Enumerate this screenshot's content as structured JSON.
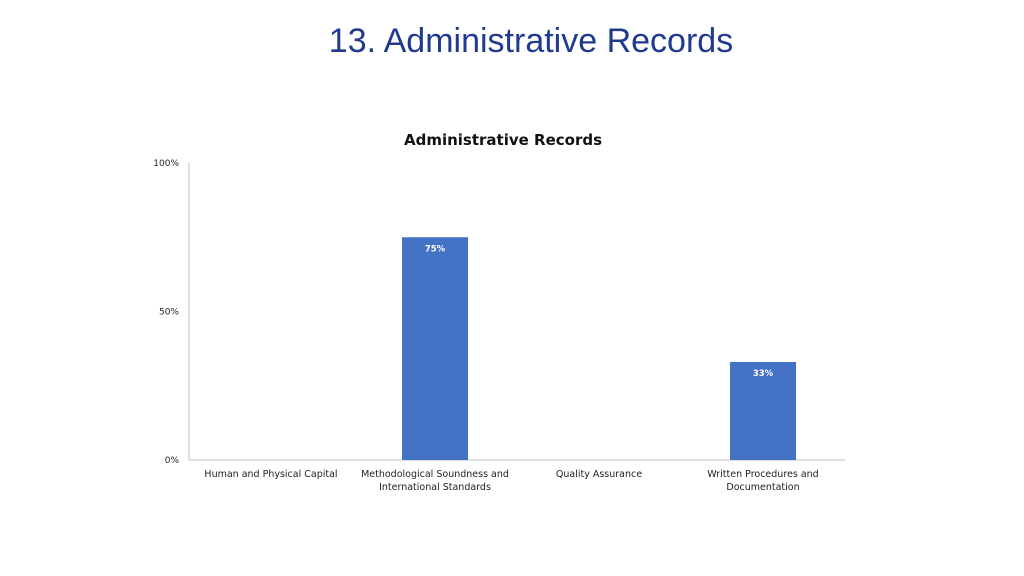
{
  "slide": {
    "title": "13. Administrative Records"
  },
  "chart_data": {
    "type": "bar",
    "title": "Administrative Records",
    "xlabel": "",
    "ylabel": "",
    "categories": [
      [
        "Human and Physical Capital"
      ],
      [
        "Methodological Soundness and",
        "International Standards"
      ],
      [
        "Quality Assurance"
      ],
      [
        "Written Procedures and",
        "Documentation"
      ]
    ],
    "values": [
      0,
      75,
      0,
      33
    ],
    "data_labels": [
      "",
      "75%",
      "",
      "33%"
    ],
    "ylim": [
      0,
      100
    ],
    "y_ticks": [
      0,
      50,
      100
    ],
    "y_tick_labels": [
      "0%",
      "50%",
      "100%"
    ],
    "grid": false,
    "legend": "none",
    "bar_color": "#4472c4",
    "axis_color": "#bfbfbf",
    "title_color": "#1f3a8f"
  }
}
